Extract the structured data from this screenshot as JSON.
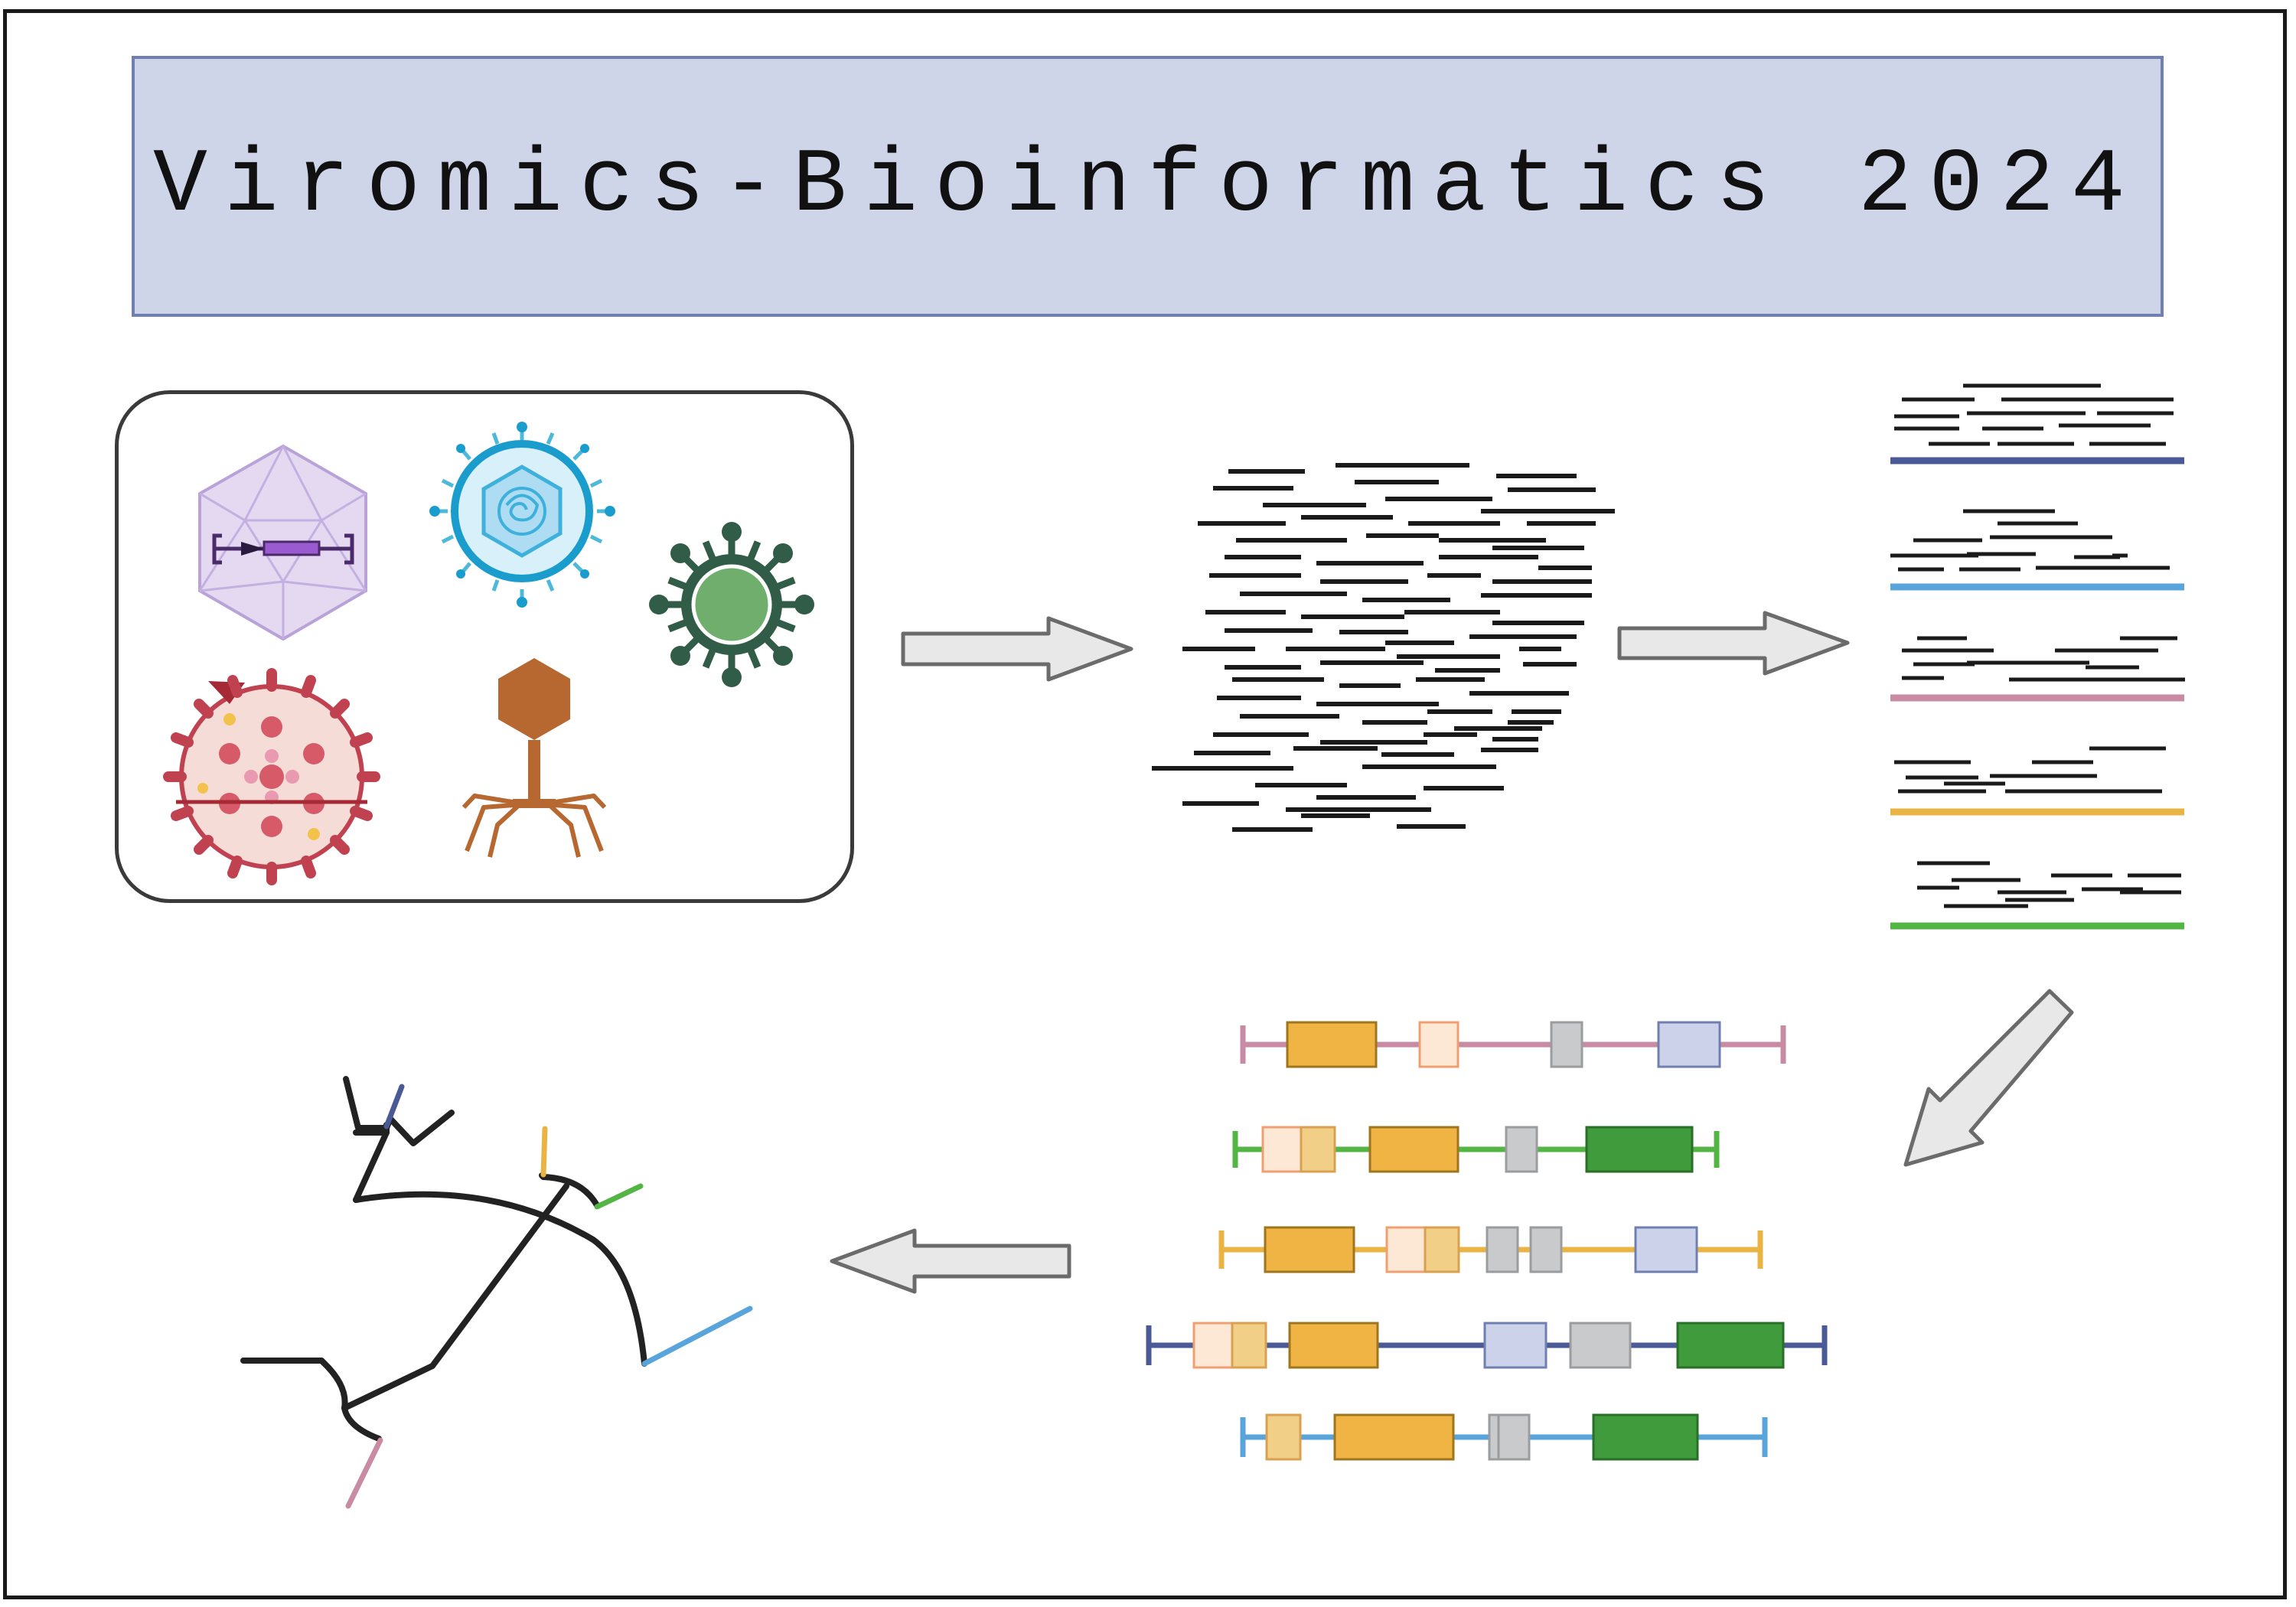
{
  "title": "Viromics-Bioinformatics 2024",
  "colors": {
    "banner_fill": "#ced5e8",
    "banner_border": "#6f80b0",
    "arrow_fill": "#e8e8e8",
    "arrow_stroke": "#6b6b6b",
    "read": "#1a1a1a",
    "navy": "#4a5a96",
    "blue": "#5aa4dc",
    "pink": "#c98aa4",
    "yellow": "#eab444",
    "green": "#52b544",
    "orange_gene": "#f0b445",
    "peach_gene": "#fde8d6",
    "lightorange_gene": "#f2cf86",
    "grey_gene": "#c8cacc",
    "lavender_gene": "#cbd2ea",
    "darkgreen_gene": "#3f9b3c"
  },
  "viruses": [
    {
      "name": "aav-capsid",
      "color": "#cbb8e2"
    },
    {
      "name": "herpes-virion",
      "color": "#1a9ccd"
    },
    {
      "name": "enveloped-virus",
      "color": "#315c47"
    },
    {
      "name": "influenza-virion",
      "color": "#c0414f"
    },
    {
      "name": "bacteriophage",
      "color": "#b76830"
    }
  ],
  "bins": [
    {
      "name": "navy-bin",
      "color": "#4a5a96"
    },
    {
      "name": "blue-bin",
      "color": "#5aa4dc"
    },
    {
      "name": "pink-bin",
      "color": "#c98aa4"
    },
    {
      "name": "yellow-bin",
      "color": "#eab444"
    },
    {
      "name": "green-bin",
      "color": "#52b544"
    }
  ],
  "genomes": [
    {
      "name": "pink-genome",
      "color": "#c98aa4"
    },
    {
      "name": "green-genome",
      "color": "#52b544"
    },
    {
      "name": "yellow-genome",
      "color": "#eab444"
    },
    {
      "name": "navy-genome",
      "color": "#4a5a96"
    },
    {
      "name": "blue-genome",
      "color": "#5aa4dc"
    }
  ]
}
